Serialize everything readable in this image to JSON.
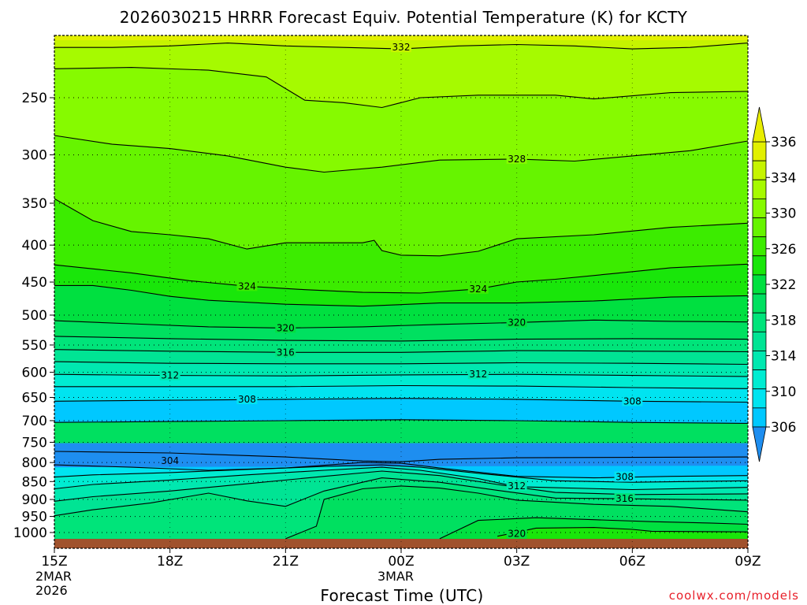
{
  "title": "2026030215 HRRR Forecast Equiv. Potential Temperature (K) for KCTY",
  "credit": "coolwx.com/models",
  "chart_data": {
    "type": "heatmap",
    "title": "2026030215 HRRR Forecast Equiv. Potential Temperature (K) for KCTY",
    "xlabel": "Forecast Time (UTC)",
    "ylabel": "",
    "x_hours": [
      0,
      18
    ],
    "x_ticks": [
      {
        "hour": 0,
        "label": "15Z",
        "sub": [
          "2MAR",
          "2026"
        ]
      },
      {
        "hour": 3,
        "label": "18Z",
        "sub": []
      },
      {
        "hour": 6,
        "label": "21Z",
        "sub": []
      },
      {
        "hour": 9,
        "label": "00Z",
        "sub": [
          "3MAR"
        ]
      },
      {
        "hour": 12,
        "label": "03Z",
        "sub": []
      },
      {
        "hour": 15,
        "label": "06Z",
        "sub": []
      },
      {
        "hour": 18,
        "label": "09Z",
        "sub": []
      }
    ],
    "y_axis": "pressure (hPa), log scale, inverted",
    "y_range": [
      1025,
      200
    ],
    "y_ticks": [
      "250",
      "300",
      "350",
      "400",
      "450",
      "500",
      "550",
      "600",
      "650",
      "700",
      "750",
      "800",
      "850",
      "900",
      "950",
      "1000"
    ],
    "grid": "dotted",
    "colorbar": {
      "labels": [
        "306",
        "310",
        "314",
        "318",
        "322",
        "326",
        "330",
        "334",
        "336"
      ],
      "levels": [
        304,
        306,
        308,
        310,
        312,
        314,
        316,
        318,
        320,
        322,
        324,
        326,
        328,
        330,
        332,
        334,
        336,
        338
      ],
      "colors": [
        "#1e8ef0",
        "#00c8ff",
        "#00e4f0",
        "#00ecd2",
        "#00e8b0",
        "#00e494",
        "#00e47a",
        "#00e060",
        "#00e040",
        "#19e60a",
        "#3cec00",
        "#66f400",
        "#86fa00",
        "#a6fa00",
        "#c6f400",
        "#e2f000"
      ],
      "extend": "both"
    },
    "contours": [
      {
        "level": 332,
        "pts": [
          [
            0,
            213
          ],
          [
            1.5,
            213
          ],
          [
            3,
            212
          ],
          [
            4.5,
            210
          ],
          [
            6,
            212
          ],
          [
            7.5,
            213
          ],
          [
            9,
            214
          ],
          [
            10.5,
            212
          ],
          [
            12,
            211
          ],
          [
            13.5,
            212
          ],
          [
            15,
            214
          ],
          [
            16.5,
            213
          ],
          [
            18,
            210
          ]
        ]
      },
      {
        "level": 330,
        "pts": [
          [
            0,
            228
          ],
          [
            2,
            227
          ],
          [
            4,
            229
          ],
          [
            5.5,
            234
          ],
          [
            6.5,
            252
          ],
          [
            7.5,
            254
          ],
          [
            8.5,
            258
          ],
          [
            9.5,
            250
          ],
          [
            11,
            248
          ],
          [
            13,
            248
          ],
          [
            14,
            251
          ],
          [
            16,
            246
          ],
          [
            18,
            245
          ]
        ]
      },
      {
        "level": 328,
        "pts": [
          [
            0,
            282
          ],
          [
            1.5,
            290
          ],
          [
            3,
            294
          ],
          [
            4.5,
            301
          ],
          [
            6,
            312
          ],
          [
            7,
            317
          ],
          [
            8.5,
            312
          ],
          [
            10,
            305
          ],
          [
            12,
            304
          ],
          [
            13.5,
            306
          ],
          [
            15,
            301
          ],
          [
            16.5,
            296
          ],
          [
            18,
            287
          ]
        ]
      },
      {
        "level": 326,
        "pts": [
          [
            0,
            345
          ],
          [
            1,
            370
          ],
          [
            2,
            383
          ],
          [
            3,
            387
          ],
          [
            4,
            392
          ],
          [
            5,
            405
          ],
          [
            6,
            397
          ],
          [
            7,
            397
          ],
          [
            8,
            397
          ],
          [
            8.3,
            394
          ],
          [
            8.5,
            407
          ],
          [
            9,
            413
          ],
          [
            10,
            414
          ],
          [
            11,
            408
          ],
          [
            12,
            392
          ],
          [
            14,
            387
          ],
          [
            16,
            378
          ],
          [
            18,
            373
          ]
        ]
      },
      {
        "level": 324,
        "pts": [
          [
            0,
            426
          ],
          [
            2,
            437
          ],
          [
            3.5,
            448
          ],
          [
            5,
            456
          ],
          [
            6.5,
            461
          ],
          [
            8,
            465
          ],
          [
            9.5,
            466
          ],
          [
            11,
            460
          ],
          [
            12,
            450
          ],
          [
            13,
            446
          ],
          [
            14.5,
            438
          ],
          [
            16,
            430
          ],
          [
            18,
            425
          ]
        ]
      },
      {
        "level": 322,
        "pts": [
          [
            0,
            455
          ],
          [
            1,
            455
          ],
          [
            2,
            462
          ],
          [
            3,
            471
          ],
          [
            4,
            477
          ],
          [
            6,
            483
          ],
          [
            8,
            486
          ],
          [
            10,
            481
          ],
          [
            12,
            481
          ],
          [
            14,
            478
          ],
          [
            16,
            472
          ],
          [
            18,
            470
          ]
        ]
      },
      {
        "level": 320,
        "pts": [
          [
            0,
            509
          ],
          [
            2,
            514
          ],
          [
            4,
            519
          ],
          [
            6,
            521
          ],
          [
            8,
            519
          ],
          [
            10,
            515
          ],
          [
            12,
            512
          ],
          [
            14,
            508
          ],
          [
            16,
            510
          ],
          [
            18,
            511
          ]
        ]
      },
      {
        "level": 318,
        "pts": [
          [
            0,
            535
          ],
          [
            3,
            539
          ],
          [
            6,
            542
          ],
          [
            9,
            543
          ],
          [
            12,
            540
          ],
          [
            15,
            539
          ],
          [
            18,
            540
          ]
        ]
      },
      {
        "level": 316,
        "pts": [
          [
            0,
            558
          ],
          [
            3,
            561
          ],
          [
            6,
            563
          ],
          [
            9,
            563
          ],
          [
            12,
            560
          ],
          [
            15,
            561
          ],
          [
            18,
            562
          ]
        ]
      },
      {
        "level": 314,
        "pts": [
          [
            0,
            580
          ],
          [
            3,
            583
          ],
          [
            6,
            584
          ],
          [
            9,
            584
          ],
          [
            12,
            582
          ],
          [
            15,
            583
          ],
          [
            18,
            585
          ]
        ]
      },
      {
        "level": 312,
        "pts": [
          [
            0,
            604
          ],
          [
            3,
            606
          ],
          [
            6,
            607
          ],
          [
            9,
            605
          ],
          [
            12,
            604
          ],
          [
            15,
            606
          ],
          [
            18,
            608
          ]
        ]
      },
      {
        "level": 310,
        "pts": [
          [
            0,
            628
          ],
          [
            3,
            628
          ],
          [
            6,
            628
          ],
          [
            9,
            626
          ],
          [
            12,
            627
          ],
          [
            15,
            630
          ],
          [
            18,
            632
          ]
        ]
      },
      {
        "level": 308,
        "pts": [
          [
            0,
            658
          ],
          [
            3,
            656
          ],
          [
            6,
            654
          ],
          [
            9,
            652
          ],
          [
            12,
            654
          ],
          [
            15,
            658
          ],
          [
            18,
            660
          ]
        ]
      },
      {
        "level": 306,
        "pts": [
          [
            0,
            704
          ],
          [
            3,
            702
          ],
          [
            6,
            700
          ],
          [
            9,
            698
          ],
          [
            12,
            700
          ],
          [
            15,
            704
          ],
          [
            18,
            706
          ]
        ]
      },
      {
        "level": 306,
        "pts": [
          [
            0,
            772
          ],
          [
            3,
            776
          ],
          [
            6,
            786
          ],
          [
            8,
            796
          ],
          [
            9,
            798
          ],
          [
            10,
            792
          ],
          [
            12,
            788
          ],
          [
            15,
            787
          ],
          [
            18,
            786
          ]
        ]
      },
      {
        "level": 308,
        "pts": [
          [
            0,
            806
          ],
          [
            2,
            812
          ],
          [
            4,
            820
          ],
          [
            6,
            814
          ],
          [
            8,
            800
          ],
          [
            9,
            802
          ],
          [
            10,
            814
          ],
          [
            12,
            836
          ],
          [
            14,
            840
          ],
          [
            16,
            836
          ],
          [
            18,
            834
          ]
        ]
      },
      {
        "level": 310,
        "pts": [
          [
            0,
            838
          ],
          [
            1,
            832
          ],
          [
            3,
            826
          ],
          [
            5,
            818
          ],
          [
            7,
            810
          ],
          [
            8.5,
            806
          ],
          [
            9.5,
            812
          ],
          [
            11,
            828
          ],
          [
            13,
            848
          ],
          [
            15,
            852
          ],
          [
            18,
            848
          ]
        ]
      },
      {
        "level": 312,
        "pts": [
          [
            0,
            870
          ],
          [
            1,
            858
          ],
          [
            3,
            846
          ],
          [
            5,
            832
          ],
          [
            7,
            820
          ],
          [
            8.5,
            812
          ],
          [
            9.5,
            820
          ],
          [
            11,
            842
          ],
          [
            12,
            864
          ],
          [
            15,
            872
          ],
          [
            18,
            866
          ]
        ]
      },
      {
        "level": 314,
        "pts": [
          [
            0,
            905
          ],
          [
            1,
            892
          ],
          [
            3,
            876
          ],
          [
            5,
            856
          ],
          [
            7,
            836
          ],
          [
            8.5,
            822
          ],
          [
            10,
            834
          ],
          [
            11.5,
            858
          ],
          [
            13,
            880
          ],
          [
            15,
            886
          ],
          [
            18,
            884
          ]
        ]
      },
      {
        "level": 316,
        "pts": [
          [
            0,
            948
          ],
          [
            1,
            930
          ],
          [
            2.5,
            910
          ],
          [
            4,
            882
          ],
          [
            5,
            904
          ],
          [
            6,
            920
          ],
          [
            7,
            876
          ],
          [
            8.5,
            840
          ],
          [
            10,
            852
          ],
          [
            11.5,
            874
          ],
          [
            13,
            896
          ],
          [
            15,
            898
          ],
          [
            18,
            902
          ]
        ]
      },
      {
        "level": 318,
        "pts": [
          [
            6,
            1020
          ],
          [
            6.8,
            980
          ],
          [
            7,
            900
          ],
          [
            8,
            870
          ],
          [
            9,
            862
          ],
          [
            10,
            868
          ],
          [
            11,
            882
          ],
          [
            12,
            902
          ],
          [
            14,
            914
          ],
          [
            16,
            920
          ],
          [
            18,
            936
          ]
        ]
      },
      {
        "level": 320,
        "pts": [
          [
            10,
            1020
          ],
          [
            11,
            962
          ],
          [
            12.5,
            954
          ],
          [
            14,
            960
          ],
          [
            15.5,
            966
          ],
          [
            17,
            970
          ],
          [
            18,
            974
          ]
        ]
      },
      {
        "level": 322,
        "pts": [
          [
            11.5,
            1012
          ],
          [
            12.5,
            986
          ],
          [
            14,
            984
          ],
          [
            15,
            990
          ],
          [
            15.5,
            996
          ],
          [
            18,
            998
          ]
        ]
      }
    ],
    "contour_labels": [
      {
        "text": "332",
        "hour": 9.0,
        "p": 213
      },
      {
        "text": "328",
        "hour": 12.0,
        "p": 304
      },
      {
        "text": "324",
        "hour": 5.0,
        "p": 456
      },
      {
        "text": "324",
        "hour": 11.0,
        "p": 460
      },
      {
        "text": "320",
        "hour": 6.0,
        "p": 521
      },
      {
        "text": "320",
        "hour": 12.0,
        "p": 512
      },
      {
        "text": "316",
        "hour": 6.0,
        "p": 563
      },
      {
        "text": "312",
        "hour": 3.0,
        "p": 606
      },
      {
        "text": "312",
        "hour": 11.0,
        "p": 604
      },
      {
        "text": "308",
        "hour": 5.0,
        "p": 654
      },
      {
        "text": "308",
        "hour": 15.0,
        "p": 658
      },
      {
        "text": "304",
        "hour": 3.0,
        "p": 796
      },
      {
        "text": "308",
        "hour": 14.8,
        "p": 838
      },
      {
        "text": "312",
        "hour": 12.0,
        "p": 862
      },
      {
        "text": "316",
        "hour": 14.8,
        "p": 898
      },
      {
        "text": "320",
        "hour": 12.0,
        "p": 1004
      }
    ],
    "ground_pressure_hPa": 1012
  }
}
